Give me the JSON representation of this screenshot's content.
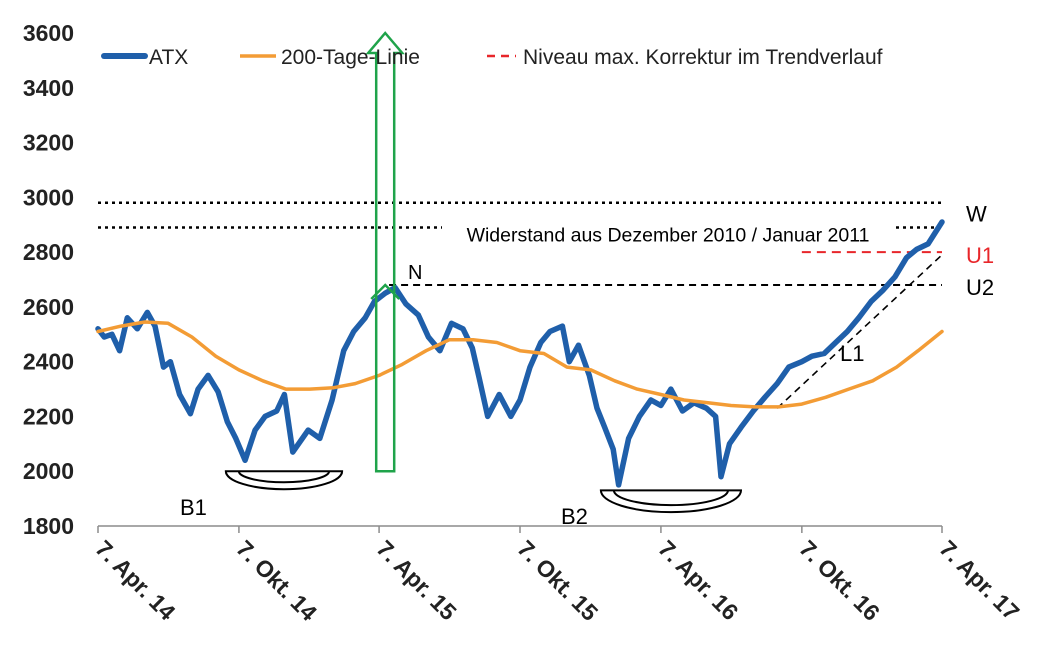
{
  "chart_data": {
    "type": "line",
    "ylim": [
      1800,
      3600
    ],
    "y_ticks": [
      1800,
      2000,
      2200,
      2400,
      2600,
      2800,
      3000,
      3200,
      3400,
      3600
    ],
    "x_ticks": [
      {
        "label": "7. Apr. 14",
        "date": "2014-04-07"
      },
      {
        "label": "7. Okt. 14",
        "date": "2014-10-07"
      },
      {
        "label": "7. Apr. 15",
        "date": "2015-04-07"
      },
      {
        "label": "7. Okt. 15",
        "date": "2015-10-07"
      },
      {
        "label": "7. Apr. 16",
        "date": "2016-04-07"
      },
      {
        "label": "7. Okt. 16",
        "date": "2016-10-07"
      },
      {
        "label": "7. Apr. 17",
        "date": "2017-04-07"
      }
    ],
    "legend": {
      "placement": "top",
      "entries": [
        {
          "label": "ATX",
          "color": "#1f5faa",
          "style": "solid-thick"
        },
        {
          "label": "200-Tage-Linie",
          "color": "#f39c35",
          "style": "solid"
        },
        {
          "label": "Niveau max. Korrektur im Trendverlauf",
          "color": "#e8262a",
          "style": "dashed"
        }
      ]
    },
    "series": [
      {
        "name": "ATX",
        "color": "#1f5faa",
        "points": [
          [
            "2014-04-07",
            2520
          ],
          [
            "2014-04-15",
            2490
          ],
          [
            "2014-04-25",
            2500
          ],
          [
            "2014-05-05",
            2440
          ],
          [
            "2014-05-15",
            2560
          ],
          [
            "2014-05-28",
            2520
          ],
          [
            "2014-06-10",
            2580
          ],
          [
            "2014-06-20",
            2530
          ],
          [
            "2014-07-01",
            2380
          ],
          [
            "2014-07-10",
            2400
          ],
          [
            "2014-07-22",
            2280
          ],
          [
            "2014-08-05",
            2210
          ],
          [
            "2014-08-15",
            2300
          ],
          [
            "2014-08-28",
            2350
          ],
          [
            "2014-09-10",
            2290
          ],
          [
            "2014-09-22",
            2180
          ],
          [
            "2014-10-03",
            2120
          ],
          [
            "2014-10-15",
            2040
          ],
          [
            "2014-10-28",
            2150
          ],
          [
            "2014-11-10",
            2200
          ],
          [
            "2014-11-25",
            2220
          ],
          [
            "2014-12-05",
            2280
          ],
          [
            "2014-12-16",
            2070
          ],
          [
            "2015-01-05",
            2150
          ],
          [
            "2015-01-20",
            2120
          ],
          [
            "2015-02-05",
            2260
          ],
          [
            "2015-02-20",
            2440
          ],
          [
            "2015-03-05",
            2510
          ],
          [
            "2015-03-20",
            2560
          ],
          [
            "2015-04-01",
            2620
          ],
          [
            "2015-04-15",
            2650
          ],
          [
            "2015-04-28",
            2670
          ],
          [
            "2015-05-12",
            2610
          ],
          [
            "2015-05-28",
            2570
          ],
          [
            "2015-06-10",
            2490
          ],
          [
            "2015-06-25",
            2440
          ],
          [
            "2015-07-10",
            2540
          ],
          [
            "2015-07-25",
            2520
          ],
          [
            "2015-08-06",
            2450
          ],
          [
            "2015-08-15",
            2340
          ],
          [
            "2015-08-26",
            2200
          ],
          [
            "2015-09-10",
            2280
          ],
          [
            "2015-09-25",
            2200
          ],
          [
            "2015-10-07",
            2260
          ],
          [
            "2015-10-20",
            2380
          ],
          [
            "2015-11-03",
            2470
          ],
          [
            "2015-11-15",
            2510
          ],
          [
            "2015-12-01",
            2530
          ],
          [
            "2015-12-10",
            2400
          ],
          [
            "2015-12-22",
            2460
          ],
          [
            "2016-01-05",
            2350
          ],
          [
            "2016-01-15",
            2230
          ],
          [
            "2016-01-25",
            2160
          ],
          [
            "2016-02-05",
            2080
          ],
          [
            "2016-02-12",
            1950
          ],
          [
            "2016-02-25",
            2120
          ],
          [
            "2016-03-10",
            2200
          ],
          [
            "2016-03-25",
            2260
          ],
          [
            "2016-04-07",
            2240
          ],
          [
            "2016-04-20",
            2300
          ],
          [
            "2016-05-05",
            2220
          ],
          [
            "2016-05-20",
            2250
          ],
          [
            "2016-06-05",
            2230
          ],
          [
            "2016-06-17",
            2200
          ],
          [
            "2016-06-24",
            1980
          ],
          [
            "2016-07-05",
            2100
          ],
          [
            "2016-07-20",
            2160
          ],
          [
            "2016-08-05",
            2220
          ],
          [
            "2016-08-20",
            2270
          ],
          [
            "2016-09-05",
            2320
          ],
          [
            "2016-09-20",
            2380
          ],
          [
            "2016-10-07",
            2400
          ],
          [
            "2016-10-20",
            2420
          ],
          [
            "2016-11-05",
            2430
          ],
          [
            "2016-11-20",
            2470
          ],
          [
            "2016-12-05",
            2510
          ],
          [
            "2016-12-20",
            2560
          ],
          [
            "2017-01-05",
            2620
          ],
          [
            "2017-01-20",
            2660
          ],
          [
            "2017-02-05",
            2710
          ],
          [
            "2017-02-20",
            2780
          ],
          [
            "2017-03-05",
            2810
          ],
          [
            "2017-03-20",
            2830
          ],
          [
            "2017-04-07",
            2910
          ]
        ]
      },
      {
        "name": "200-Tage-Linie",
        "color": "#f39c35",
        "points": [
          [
            "2014-04-07",
            2510
          ],
          [
            "2014-05-07",
            2530
          ],
          [
            "2014-06-07",
            2545
          ],
          [
            "2014-07-07",
            2540
          ],
          [
            "2014-08-07",
            2490
          ],
          [
            "2014-09-07",
            2420
          ],
          [
            "2014-10-07",
            2370
          ],
          [
            "2014-11-07",
            2330
          ],
          [
            "2014-12-07",
            2300
          ],
          [
            "2015-01-07",
            2300
          ],
          [
            "2015-02-07",
            2305
          ],
          [
            "2015-03-07",
            2320
          ],
          [
            "2015-04-07",
            2350
          ],
          [
            "2015-05-07",
            2390
          ],
          [
            "2015-06-07",
            2440
          ],
          [
            "2015-07-07",
            2480
          ],
          [
            "2015-08-07",
            2480
          ],
          [
            "2015-09-07",
            2470
          ],
          [
            "2015-10-07",
            2440
          ],
          [
            "2015-11-07",
            2430
          ],
          [
            "2015-12-07",
            2380
          ],
          [
            "2016-01-07",
            2370
          ],
          [
            "2016-02-07",
            2330
          ],
          [
            "2016-03-07",
            2300
          ],
          [
            "2016-04-07",
            2280
          ],
          [
            "2016-05-07",
            2260
          ],
          [
            "2016-06-07",
            2250
          ],
          [
            "2016-07-07",
            2240
          ],
          [
            "2016-08-07",
            2235
          ],
          [
            "2016-09-07",
            2235
          ],
          [
            "2016-10-07",
            2245
          ],
          [
            "2016-11-07",
            2270
          ],
          [
            "2016-12-07",
            2300
          ],
          [
            "2017-01-07",
            2330
          ],
          [
            "2017-02-07",
            2380
          ],
          [
            "2017-03-07",
            2440
          ],
          [
            "2017-04-07",
            2510
          ]
        ]
      }
    ],
    "reference_lines": [
      {
        "id": "W-upper",
        "y": 2980,
        "style": "dotted",
        "color": "#000000"
      },
      {
        "id": "W-lower",
        "y": 2890,
        "style": "dotted",
        "color": "#000000"
      },
      {
        "id": "U1",
        "y": 2800,
        "x_from": "2016-10-07",
        "style": "dashed",
        "color": "#e8262a"
      },
      {
        "id": "U2",
        "y": 2680,
        "x_from": "2015-04-20",
        "style": "dashed",
        "color": "#000000"
      }
    ],
    "trend_line": {
      "label": "L1",
      "from": [
        "2016-09-05",
        2230
      ],
      "to": [
        "2017-04-07",
        2790
      ],
      "style": "dashed",
      "color": "#000000"
    },
    "arrow": {
      "date": "2015-04-15",
      "from": 2000,
      "to": 3600,
      "color": "#1fa34a"
    },
    "annotations": {
      "resistance": "Widerstand aus Dezember 2010 / Januar 2011",
      "w": "W",
      "u1": "U1",
      "u2": "U2",
      "n": "N",
      "l1": "L1",
      "b1": "B1",
      "b2": "B2"
    },
    "bases": [
      {
        "label": "B1",
        "from": "2014-09-20",
        "to": "2015-02-18",
        "y": 2000
      },
      {
        "label": "B2",
        "from": "2016-01-20",
        "to": "2016-07-20",
        "y": 1930
      }
    ]
  }
}
